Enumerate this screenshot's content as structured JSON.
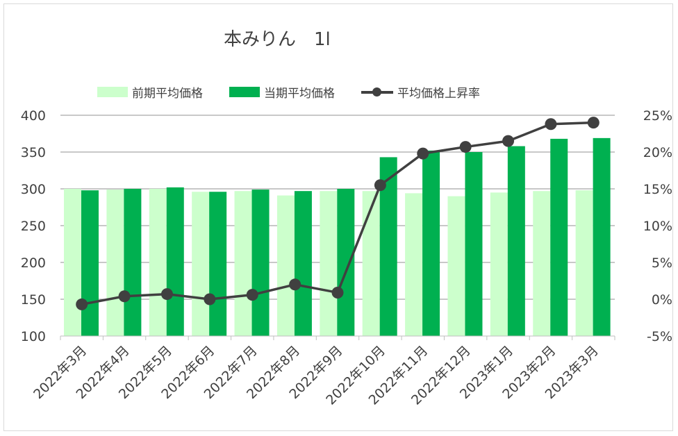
{
  "chart_data": {
    "type": "bar",
    "title": "本みりん　1l",
    "categories": [
      "2022年3月",
      "2022年4月",
      "2022年5月",
      "2022年6月",
      "2022年7月",
      "2022年8月",
      "2022年9月",
      "2022年10月",
      "2022年11月",
      "2022年12月",
      "2023年1月",
      "2023年2月",
      "2023年3月"
    ],
    "series": [
      {
        "name": "前期平均価格",
        "kind": "bar",
        "axis": "left",
        "color": "#ccffcc",
        "values": [
          300,
          299,
          300,
          296,
          297,
          291,
          297,
          297,
          294,
          290,
          295,
          297,
          298
        ]
      },
      {
        "name": "当期平均価格",
        "kind": "bar",
        "axis": "left",
        "color": "#00b050",
        "values": [
          298,
          300,
          302,
          296,
          299,
          297,
          300,
          343,
          352,
          350,
          358,
          368,
          369
        ]
      },
      {
        "name": "平均価格上昇率",
        "kind": "line",
        "axis": "right",
        "color": "#404040",
        "values": [
          -0.7,
          0.4,
          0.7,
          0.0,
          0.6,
          2.0,
          0.9,
          15.5,
          19.8,
          20.7,
          21.5,
          23.8,
          24.0
        ]
      }
    ],
    "y_left": {
      "min": 100,
      "max": 400,
      "step": 50,
      "ticks": [
        "100",
        "150",
        "200",
        "250",
        "300",
        "350",
        "400"
      ]
    },
    "y_right": {
      "min": -5,
      "max": 25,
      "step": 5,
      "ticks": [
        "-5%",
        "0%",
        "5%",
        "10%",
        "15%",
        "20%",
        "25%"
      ]
    },
    "grid": true,
    "legend_position": "top"
  }
}
